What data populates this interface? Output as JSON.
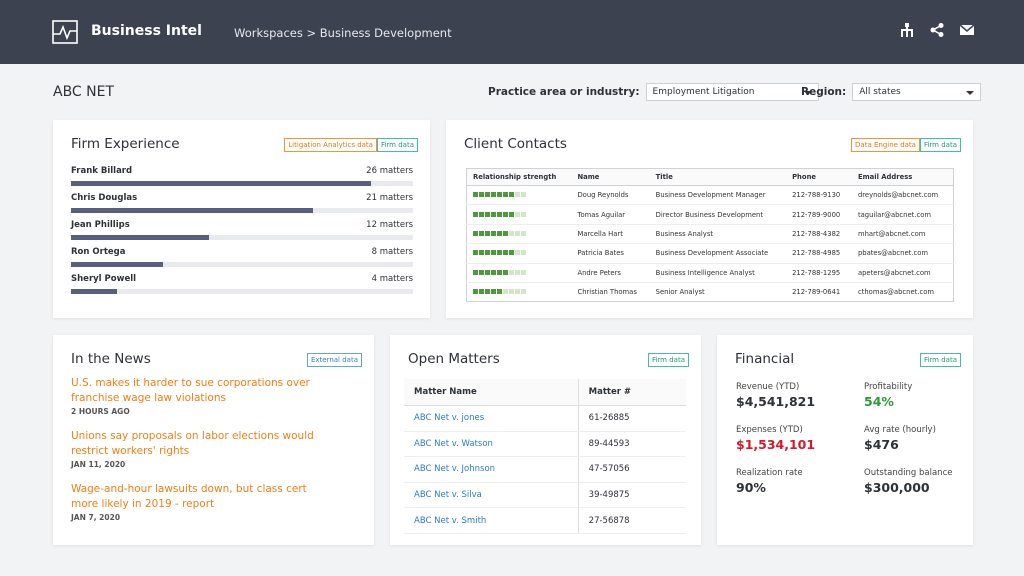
{
  "header": {
    "app_name": "Business Intel",
    "breadcrumb": "Workspaces > Business Development"
  },
  "page": {
    "title": "ABC NET",
    "filters": [
      {
        "label": "Practice area or industry:",
        "value": "Employment Litigation"
      },
      {
        "label": "Region:",
        "value": "All states"
      }
    ]
  },
  "firm_experience": {
    "title": "Firm Experience",
    "tags": [
      "Litigation Analytics data",
      "Firm data"
    ],
    "rows": [
      {
        "name": "Frank Billard",
        "matters": 26,
        "label": "26 matters"
      },
      {
        "name": "Chris Douglas",
        "matters": 21,
        "label": "21 matters"
      },
      {
        "name": "Jean Phillips",
        "matters": 12,
        "label": "12 matters"
      },
      {
        "name": "Ron Ortega",
        "matters": 8,
        "label": "8 matters"
      },
      {
        "name": "Sheryl Powell",
        "matters": 4,
        "label": "4 matters"
      }
    ]
  },
  "client_contacts": {
    "title": "Client Contacts",
    "tags": [
      "Data Engine data",
      "Firm data"
    ],
    "columns": [
      "Relationship strength",
      "Name",
      "Title",
      "Phone",
      "Email Address"
    ],
    "rows": [
      {
        "strength": 7,
        "name": "Doug Reynolds",
        "title": "Business Development Manager",
        "phone": "212-788-9130",
        "email": "dreynolds@abcnet.com"
      },
      {
        "strength": 7,
        "name": "Tomas Aguilar",
        "title": "Director Business Development",
        "phone": "212-789-9000",
        "email": "taguilar@abcnet.com"
      },
      {
        "strength": 6,
        "name": "Marcella Hart",
        "title": "Business Analyst",
        "phone": "212-788-4382",
        "email": "mhart@abcnet.com"
      },
      {
        "strength": 7,
        "name": "Patricia Bates",
        "title": "Business Development Associate",
        "phone": "212-788-4985",
        "email": "pbates@abcnet.com"
      },
      {
        "strength": 6,
        "name": "Andre Peters",
        "title": "Business Intelligence Analyst",
        "phone": "212-788-1295",
        "email": "apeters@abcnet.com"
      },
      {
        "strength": 5,
        "name": "Christian Thomas",
        "title": "Senior Analyst",
        "phone": "212-789-0641",
        "email": "cthomas@abcnet.com"
      }
    ]
  },
  "news": {
    "title": "In the News",
    "tag": "External data",
    "items": [
      {
        "headline": "U.S. makes it harder to sue corporations over franchise wage law violations",
        "date": "2 HOURS AGO"
      },
      {
        "headline": "Unions say proposals on labor elections would restrict workers' rights",
        "date": "JAN 11, 2020"
      },
      {
        "headline": "Wage-and-hour lawsuits down, but class cert more likely in 2019 - report",
        "date": "JAN 7, 2020"
      }
    ]
  },
  "open_matters": {
    "title": "Open Matters",
    "tag": "Firm data",
    "columns": [
      "Matter Name",
      "Matter #"
    ],
    "rows": [
      [
        "ABC Net v. jones",
        "61-26885"
      ],
      [
        "ABC Net v. Watson",
        "89-44593"
      ],
      [
        "ABC Net v. Johnson",
        "47-57056"
      ],
      [
        "ABC Net v. Silva",
        "39-49875"
      ],
      [
        "ABC Net v. Smith",
        "27-56878"
      ]
    ]
  },
  "financial": {
    "title": "Financial",
    "tag": "Firm data",
    "metrics": [
      {
        "label": "Revenue (YTD)",
        "value": "$4,541,821"
      },
      {
        "label": "Profitability",
        "value": "54%"
      },
      {
        "label": "Expenses (YTD)",
        "value": "$1,534,101"
      },
      {
        "label": "Avg rate (hourly)",
        "value": "$476"
      },
      {
        "label": "Realization rate",
        "value": "90%"
      },
      {
        "label": "Outstanding balance",
        "value": "$300,000"
      }
    ]
  }
}
